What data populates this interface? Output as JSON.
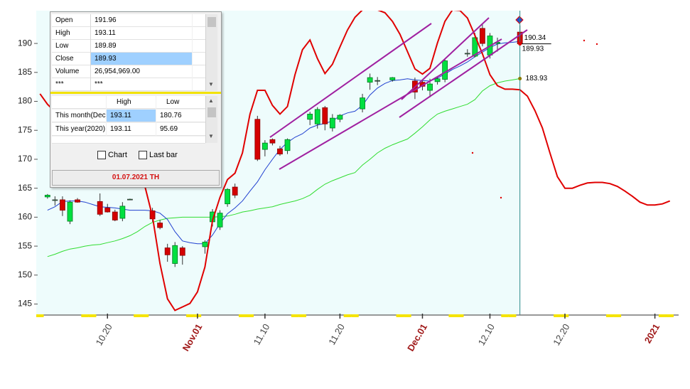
{
  "chart_data": {
    "type": "candlestick",
    "categories": [
      null,
      null,
      null,
      null,
      null,
      null,
      null,
      null,
      null,
      "10.20",
      null,
      null,
      null,
      null,
      null,
      null,
      null,
      null,
      null,
      null,
      null,
      "Nov.01",
      null,
      null,
      null,
      null,
      null,
      null,
      null,
      null,
      "11.10",
      null,
      null,
      null,
      null,
      null,
      null,
      null,
      null,
      null,
      "11.20",
      null,
      null,
      null,
      null,
      null,
      null,
      null,
      null,
      null,
      null,
      "Dec.01",
      null,
      null,
      null,
      null,
      null,
      null,
      null,
      null,
      "12.10",
      null,
      null,
      null,
      null,
      null,
      null,
      null,
      null,
      null,
      "12.20",
      null,
      null,
      null,
      null,
      null,
      null,
      null,
      null,
      null,
      null,
      null,
      "2021",
      null,
      null
    ],
    "open": [
      null,
      163.5,
      162.9,
      163.0,
      159.3,
      163.0,
      null,
      null,
      162.7,
      161.6,
      160.9,
      159.8,
      163.1,
      null,
      null,
      161.1,
      159.0,
      154.7,
      152.0,
      154.7,
      null,
      null,
      154.9,
      159.2,
      158.3,
      162.3,
      165.2,
      null,
      null,
      176.9,
      171.7,
      173.4,
      171.8,
      171.5,
      null,
      null,
      176.9,
      176.1,
      178.9,
      175.4,
      176.9,
      null,
      null,
      178.7,
      183.3,
      183.6,
      null,
      183.7,
      null,
      null,
      183.5,
      183.3,
      181.9,
      183.4,
      183.8,
      null,
      null,
      188.3,
      187.8,
      192.6,
      188.0,
      190.0,
      null,
      null,
      191.96,
      null,
      null,
      null,
      null,
      null,
      null,
      null,
      null,
      null,
      null,
      null,
      null,
      null,
      null,
      null,
      null,
      null,
      null,
      null,
      null
    ],
    "high": [
      null,
      164.0,
      163.6,
      163.6,
      162.9,
      163.3,
      null,
      null,
      164.1,
      162.3,
      161.3,
      162.6,
      163.2,
      null,
      null,
      161.6,
      159.5,
      155.4,
      155.7,
      155.0,
      null,
      null,
      156.0,
      161.4,
      161.2,
      165.0,
      165.8,
      null,
      null,
      177.5,
      173.3,
      173.6,
      172.3,
      173.6,
      null,
      null,
      178.2,
      179.0,
      179.2,
      177.8,
      177.8,
      null,
      null,
      181.3,
      184.8,
      184.2,
      null,
      184.2,
      null,
      null,
      184.1,
      183.6,
      183.9,
      184.2,
      187.4,
      null,
      null,
      189.0,
      191.8,
      193.3,
      191.8,
      191.0,
      null,
      null,
      193.11,
      null,
      null,
      null,
      null,
      null,
      null,
      null,
      null,
      null,
      null,
      null,
      null,
      null,
      null,
      null,
      null,
      null,
      null,
      null,
      null
    ],
    "low": [
      null,
      163.2,
      162.0,
      160.2,
      158.8,
      162.5,
      null,
      null,
      160.2,
      160.8,
      159.3,
      159.3,
      163.0,
      null,
      null,
      159.2,
      157.9,
      152.3,
      151.4,
      151.8,
      null,
      null,
      153.7,
      158.4,
      157.8,
      161.8,
      163.3,
      null,
      null,
      169.7,
      170.5,
      172.4,
      170.6,
      170.9,
      null,
      null,
      175.9,
      175.3,
      175.0,
      174.8,
      176.4,
      null,
      null,
      178.1,
      182.0,
      182.8,
      null,
      183.4,
      null,
      null,
      180.4,
      181.9,
      180.7,
      182.9,
      183.3,
      null,
      null,
      187.7,
      187.6,
      189.5,
      187.4,
      188.6,
      null,
      null,
      189.89,
      null,
      null,
      null,
      null,
      null,
      null,
      null,
      null,
      null,
      null,
      null,
      null,
      null,
      null,
      null,
      null,
      null,
      null,
      null,
      null
    ],
    "close": [
      null,
      163.8,
      163.0,
      161.2,
      162.6,
      162.6,
      null,
      null,
      160.5,
      160.9,
      159.5,
      161.9,
      163.1,
      null,
      null,
      159.7,
      158.2,
      153.5,
      155.1,
      153.4,
      null,
      null,
      155.7,
      160.9,
      160.7,
      164.8,
      163.8,
      null,
      null,
      170.0,
      172.8,
      172.8,
      170.9,
      173.4,
      null,
      null,
      177.8,
      178.6,
      176.1,
      177.1,
      177.6,
      null,
      null,
      180.6,
      184.1,
      183.6,
      null,
      184.1,
      null,
      null,
      181.6,
      182.6,
      183.0,
      183.9,
      187.0,
      null,
      null,
      188.3,
      191.0,
      190.0,
      191.3,
      190.2,
      null,
      null,
      189.93,
      null,
      null,
      null,
      null,
      null,
      null,
      null,
      null,
      null,
      null,
      null,
      null,
      null,
      null,
      null,
      null,
      null,
      null,
      null,
      null
    ],
    "up_color": "#00e040",
    "down_color": "#d40000",
    "overlays": [
      {
        "color": "#2040d0",
        "values": [
          null,
          161.2,
          161.8,
          162.7,
          162.8,
          162.8,
          162.6,
          162.2,
          161.8,
          161.7,
          161.6,
          161.4,
          161.2,
          161.2,
          161.2,
          161.1,
          160.7,
          159.6,
          157.5,
          155.9,
          155.6,
          155.4,
          155.4,
          156.9,
          158.9,
          160.6,
          161.6,
          162.8,
          164.5,
          166.1,
          168.2,
          170.0,
          171.7,
          172.9,
          173.8,
          174.4,
          175.4,
          175.9,
          176.2,
          176.6,
          177.5,
          178.0,
          178.3,
          179.3,
          181.1,
          182.3,
          183.1,
          183.6,
          183.7,
          183.9,
          183.7,
          183.6,
          183.5,
          184.0,
          184.7,
          185.5,
          186.1,
          186.8,
          187.7,
          188.5,
          189.3,
          189.9,
          190.1,
          190.2,
          190.34,
          null,
          null,
          null,
          null,
          null,
          null,
          null,
          null,
          null,
          null,
          null,
          null,
          null,
          null,
          null,
          null,
          null,
          null,
          null,
          null
        ]
      },
      {
        "color": "#30dd30",
        "values": [
          null,
          153.2,
          153.6,
          154.1,
          154.5,
          154.7,
          155.0,
          155.2,
          155.3,
          155.6,
          155.9,
          156.3,
          156.8,
          157.5,
          158.4,
          159.1,
          159.5,
          159.8,
          159.9,
          160.0,
          160.0,
          160.0,
          160.0,
          160.0,
          160.1,
          160.2,
          160.5,
          160.9,
          161.1,
          161.4,
          161.6,
          161.8,
          162.2,
          162.5,
          162.8,
          163.2,
          163.8,
          164.8,
          165.7,
          166.3,
          166.8,
          167.3,
          167.7,
          169.0,
          170.0,
          171.1,
          171.9,
          172.5,
          173.0,
          173.5,
          174.5,
          175.6,
          176.8,
          177.8,
          178.3,
          178.7,
          179.1,
          179.5,
          180.3,
          181.8,
          182.7,
          183.2,
          183.5,
          183.7,
          183.93,
          null,
          null,
          null,
          null,
          null,
          null,
          null,
          null,
          null,
          null,
          null,
          null,
          null,
          null,
          null,
          null,
          null,
          null,
          null,
          null
        ]
      },
      {
        "color": "#e00000",
        "values": [
          181.3,
          179.5,
          178.2,
          176.8,
          175.6,
          174.3,
          172.9,
          171.7,
          170.3,
          169.1,
          168.5,
          168.1,
          167.3,
          166.4,
          165.3,
          160.1,
          152.0,
          145.9,
          143.9,
          144.5,
          145.1,
          147.1,
          151.4,
          159.4,
          163.4,
          166.5,
          167.6,
          171.1,
          177.8,
          181.9,
          181.9,
          179.3,
          177.8,
          179.1,
          184.6,
          188.9,
          190.6,
          187.4,
          184.8,
          186.4,
          189.4,
          192.3,
          194.5,
          195.8,
          196.0,
          195.8,
          195.3,
          193.8,
          191.6,
          188.6,
          185.6,
          184.7,
          185.7,
          190.1,
          193.8,
          195.8,
          195.7,
          194.4,
          191.4,
          188.2,
          184.6,
          182.7,
          182.1,
          182.1,
          182.0,
          180.9,
          178.4,
          175.4,
          171.1,
          167.0,
          165.0,
          165.0,
          165.5,
          165.9,
          166.0,
          166.0,
          165.8,
          165.3,
          164.5,
          163.6,
          162.6,
          162.1,
          162.1,
          162.3,
          162.8
        ]
      }
    ],
    "ylim": [
      143.1,
      195.66
    ],
    "yticks": [
      145,
      150,
      155,
      160,
      165,
      170,
      175,
      180,
      185,
      190
    ],
    "month_label_color": "#a01818"
  },
  "info_panel": {
    "quote": [
      [
        "Open",
        "191.96"
      ],
      [
        "High",
        "193.11"
      ],
      [
        "Low",
        "189.89"
      ],
      [
        "Close",
        "189.93"
      ],
      [
        "Volume",
        "26,954,969.00"
      ],
      [
        "***",
        "***"
      ]
    ],
    "range_headers": [
      "High",
      "Low"
    ],
    "range_rows": [
      [
        "This month(Dec)",
        "193.11",
        "180.76"
      ],
      [
        "This year(2020)",
        "193.11",
        "95.69"
      ]
    ],
    "checkboxes": [
      "Chart",
      "Last bar"
    ],
    "footer": "01.07.2021 TH"
  }
}
